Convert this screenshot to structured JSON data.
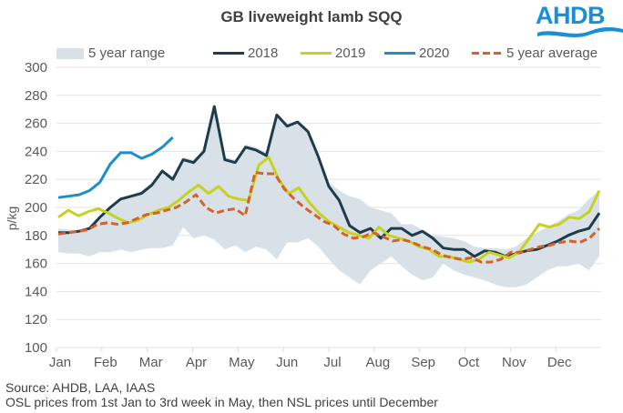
{
  "chart_data": {
    "type": "line",
    "title": "GB liveweight lamb SQQ",
    "xlabel": "",
    "ylabel": "p/kg",
    "ylim": [
      100,
      300
    ],
    "yticks": [
      100,
      120,
      140,
      160,
      180,
      200,
      220,
      240,
      260,
      280,
      300
    ],
    "xtick_labels": [
      "Jan",
      "Feb",
      "Mar",
      "Apr",
      "May",
      "Jun",
      "Jul",
      "Aug",
      "Sep",
      "Oct",
      "Nov",
      "Dec"
    ],
    "x_unit": "week of year",
    "weeks": 52,
    "grid": "horizontal",
    "legend_position": "top",
    "range": {
      "name": "5 year range",
      "color": "#d9e1e8",
      "lower": [
        168,
        167,
        167,
        165,
        168,
        168,
        170,
        168,
        170,
        171,
        171,
        173,
        186,
        178,
        180,
        177,
        170,
        173,
        168,
        172,
        170,
        163,
        175,
        175,
        178,
        172,
        163,
        155,
        150,
        145,
        155,
        160,
        165,
        158,
        152,
        148,
        150,
        160,
        155,
        152,
        150,
        148,
        145,
        143,
        143,
        145,
        150,
        155,
        158,
        158,
        160,
        155,
        165
      ],
      "upper": [
        185,
        184,
        184,
        186,
        194,
        200,
        207,
        209,
        212,
        218,
        227,
        222,
        236,
        234,
        242,
        272,
        236,
        234,
        245,
        243,
        239,
        267,
        259,
        262,
        256,
        238,
        218,
        212,
        208,
        206,
        200,
        198,
        196,
        188,
        188,
        184,
        180,
        179,
        178,
        176,
        172,
        171,
        171,
        170,
        172,
        178,
        182,
        186,
        190,
        195,
        198,
        206,
        212
      ]
    },
    "series": [
      {
        "name": "2018",
        "color": "#1f3c4a",
        "dash": false,
        "values": [
          182,
          182,
          183,
          185,
          193,
          200,
          206,
          208,
          210,
          216,
          226,
          220,
          234,
          232,
          240,
          272,
          234,
          232,
          243,
          241,
          237,
          266,
          258,
          261,
          254,
          236,
          215,
          205,
          187,
          182,
          185,
          178,
          185,
          185,
          180,
          183,
          178,
          171,
          170,
          170,
          165,
          169,
          168,
          165,
          167,
          169,
          170,
          173,
          176,
          180,
          183,
          185,
          196
        ]
      },
      {
        "name": "2019",
        "color": "#c5d31e",
        "dash": false,
        "values": [
          193,
          198,
          194,
          197,
          199,
          196,
          192,
          189,
          191,
          195,
          198,
          200,
          205,
          211,
          216,
          210,
          215,
          208,
          206,
          205,
          230,
          236,
          220,
          210,
          214,
          204,
          196,
          190,
          186,
          182,
          180,
          178,
          186,
          180,
          178,
          176,
          172,
          170,
          165,
          165,
          163,
          161,
          163,
          168,
          166,
          164,
          168,
          178,
          188,
          186,
          188,
          193,
          192,
          197,
          212
        ]
      },
      {
        "name": "2020",
        "color": "#1a8fc9",
        "dash": false,
        "values": [
          207,
          208,
          209,
          212,
          218,
          231,
          239,
          239,
          235,
          238,
          243,
          250
        ]
      },
      {
        "name": "5 year average",
        "color": "#d4622a",
        "dash": true,
        "values": [
          181,
          182,
          183,
          184,
          188,
          189,
          188,
          189,
          192,
          195,
          196,
          198,
          200,
          204,
          209,
          200,
          196,
          198,
          199,
          194,
          225,
          224,
          224,
          213,
          206,
          200,
          195,
          190,
          187,
          181,
          178,
          179,
          182,
          179,
          176,
          177,
          175,
          172,
          170,
          166,
          164,
          163,
          164,
          161,
          161,
          163,
          168,
          168,
          170,
          172,
          173,
          175,
          176,
          175,
          178,
          185
        ]
      }
    ]
  },
  "header": {
    "title": "GB liveweight lamb SQQ",
    "logo_text": "AHDB"
  },
  "legend": {
    "items": [
      "5 year range",
      "2018",
      "2019",
      "2020",
      "5 year average"
    ]
  },
  "footer": {
    "source": "Source: AHDB, LAA, IAAS",
    "note": "OSL prices from 1st Jan to 3rd week in May, then NSL prices until December"
  }
}
